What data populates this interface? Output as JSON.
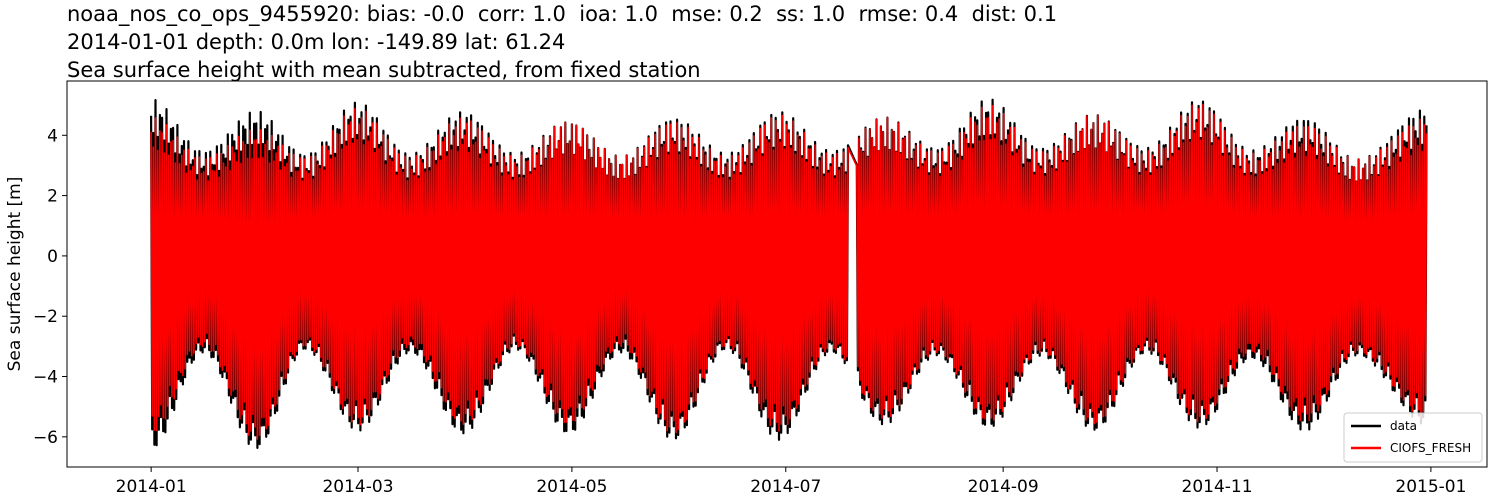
{
  "header": {
    "title_lines": [
      "noaa_nos_co_ops_9455920: bias: -0.0  corr: 1.0  ioa: 1.0  mse: 0.2  ss: 1.0  rmse: 0.4  dist: 0.1",
      "2014-01-01 depth: 0.0m lon: -149.89 lat: 61.24",
      "Sea surface height with mean subtracted, from fixed station"
    ]
  },
  "chart_data": {
    "type": "line",
    "xlabel": "",
    "ylabel": "Sea surface height [m]",
    "xlim": [
      "2013-12-08",
      "2015-01-17"
    ],
    "ylim": [
      -7.0,
      5.8
    ],
    "x_ticks": [
      "2014-01",
      "2014-03",
      "2014-05",
      "2014-07",
      "2014-09",
      "2014-11",
      "2015-01"
    ],
    "y_ticks": [
      -6,
      -4,
      -2,
      0,
      2,
      4
    ],
    "x_range": [
      "2014-01-01",
      "2014-12-31"
    ],
    "data_gap": [
      "2014-07-19",
      "2014-07-21"
    ],
    "grid": false,
    "legend_position": "lower-right",
    "series": [
      {
        "name": "data",
        "color": "#000000",
        "envelope_dates": [
          "2014-01-01",
          "2014-01-16",
          "2014-01-31",
          "2014-02-14",
          "2014-03-01",
          "2014-03-16",
          "2014-03-31",
          "2014-04-15",
          "2014-04-30",
          "2014-05-15",
          "2014-05-30",
          "2014-06-14",
          "2014-06-29",
          "2014-07-14",
          "2014-07-29",
          "2014-08-13",
          "2014-08-28",
          "2014-09-12",
          "2014-09-27",
          "2014-10-12",
          "2014-10-27",
          "2014-11-11",
          "2014-11-26",
          "2014-12-11",
          "2014-12-31"
        ],
        "envelope_max": [
          5.2,
          3.5,
          4.8,
          3.4,
          5.1,
          3.4,
          4.8,
          3.4,
          4.5,
          3.3,
          4.6,
          3.4,
          4.8,
          3.5,
          4.6,
          3.6,
          5.2,
          3.6,
          4.7,
          3.6,
          5.2,
          3.5,
          4.6,
          3.2,
          4.9
        ],
        "envelope_min": [
          -6.4,
          -3.2,
          -6.4,
          -3.1,
          -5.8,
          -3.2,
          -5.9,
          -3.1,
          -5.9,
          -3.2,
          -6.1,
          -3.1,
          -6.1,
          -3.2,
          -5.6,
          -3.3,
          -5.7,
          -3.3,
          -5.8,
          -3.2,
          -5.7,
          -3.4,
          -5.8,
          -3.3,
          -5.6
        ]
      },
      {
        "name": "CIOFS_FRESH",
        "color": "#ff0000",
        "envelope_dates": [
          "2014-01-01",
          "2014-01-16",
          "2014-01-31",
          "2014-02-14",
          "2014-03-01",
          "2014-03-16",
          "2014-03-31",
          "2014-04-15",
          "2014-04-30",
          "2014-05-15",
          "2014-05-30",
          "2014-06-14",
          "2014-06-29",
          "2014-07-14",
          "2014-07-29",
          "2014-08-13",
          "2014-08-28",
          "2014-09-12",
          "2014-09-27",
          "2014-10-12",
          "2014-10-27",
          "2014-11-11",
          "2014-11-26",
          "2014-12-11",
          "2014-12-31"
        ],
        "envelope_max": [
          4.6,
          3.3,
          4.2,
          3.3,
          4.9,
          3.3,
          4.6,
          3.3,
          4.5,
          3.3,
          4.5,
          3.3,
          4.7,
          3.4,
          4.6,
          3.5,
          5.0,
          3.5,
          4.7,
          3.5,
          5.1,
          3.4,
          4.4,
          3.2,
          4.6
        ],
        "envelope_min": [
          -5.9,
          -3.0,
          -6.1,
          -3.0,
          -5.6,
          -3.0,
          -5.6,
          -3.0,
          -5.6,
          -3.0,
          -5.9,
          -3.0,
          -5.8,
          -3.1,
          -5.4,
          -3.2,
          -5.5,
          -3.2,
          -5.6,
          -3.1,
          -5.5,
          -3.2,
          -5.5,
          -3.2,
          -5.4
        ]
      }
    ]
  }
}
